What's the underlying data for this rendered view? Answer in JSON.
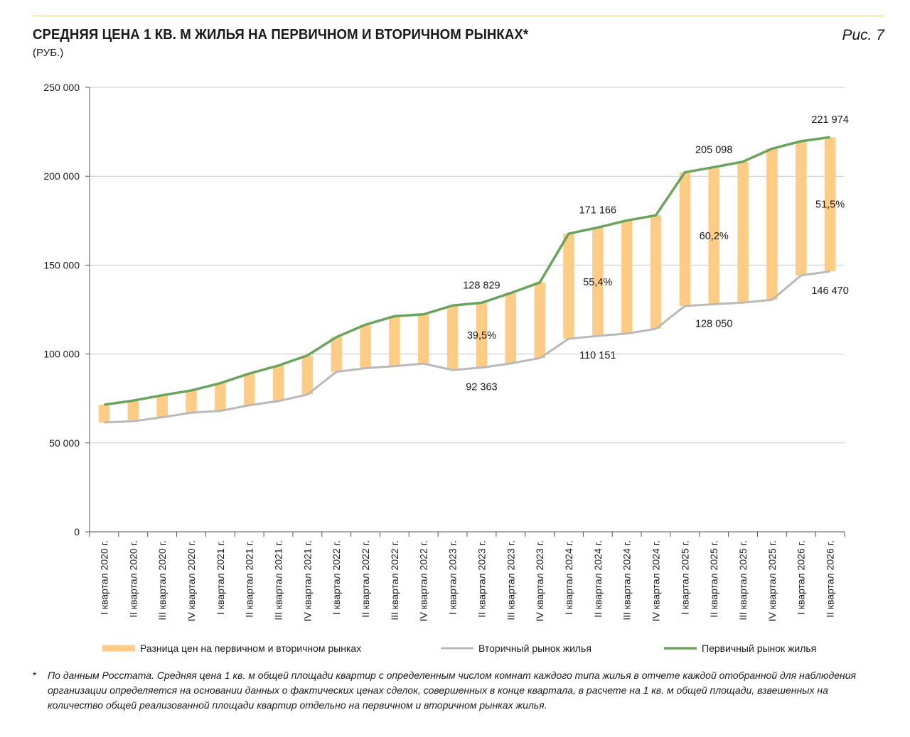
{
  "header": {
    "title": "СРЕДНЯЯ ЦЕНА 1 КВ. М ЖИЛЬЯ НА ПЕРВИЧНОМ И ВТОРИЧНОМ РЫНКАХ*",
    "subtitle": "(РУБ.)",
    "figure_label": "Рис. 7"
  },
  "colors": {
    "primary": "#6aa35c",
    "secondary": "#b9b9b9",
    "gap": "#ffcc85",
    "grid": "#c8c8c8"
  },
  "chart_data": {
    "type": "line",
    "ylim": [
      0,
      250000
    ],
    "yticks": [
      "0",
      "50 000",
      "100 000",
      "150 000",
      "200 000",
      "250 000"
    ],
    "ytick_values": [
      0,
      50000,
      100000,
      150000,
      200000,
      250000
    ],
    "grid": "horizontal",
    "legend_position": "bottom",
    "categories": [
      "I квартал 2020 г.",
      "II квартал 2020 г.",
      "III квартал 2020 г.",
      "IV квартал 2020 г.",
      "I квартал 2021 г.",
      "II квартал 2021 г.",
      "III квартал 2021 г.",
      "IV квартал 2021 г.",
      "I квартал 2022 г.",
      "II квартал 2022 г.",
      "III квартал 2022 г.",
      "IV квартал 2022 г.",
      "I квартал 2023 г.",
      "II квартал 2023 г.",
      "III квартал 2023 г.",
      "IV квартал 2023 г.",
      "I квартал 2024 г.",
      "II квартал 2024 г.",
      "III квартал 2024 г.",
      "IV квартал 2024 г.",
      "I квартал 2025 г.",
      "II квартал 2025 г.",
      "III квартал 2025 г.",
      "IV квартал 2025 г.",
      "I квартал 2026 г.",
      "II квартал 2026 г."
    ],
    "series": [
      {
        "name": "Первичный рынок жилья",
        "color": "#6aa35c",
        "values": [
          71500,
          73800,
          76800,
          79500,
          83600,
          89000,
          93500,
          99200,
          109500,
          116500,
          121300,
          122300,
          127300,
          128829,
          134300,
          140200,
          167700,
          171166,
          175100,
          178000,
          202200,
          205098,
          208200,
          215500,
          219700,
          221974
        ]
      },
      {
        "name": "Вторичный рынок жилья",
        "color": "#b9b9b9",
        "values": [
          61500,
          62200,
          64400,
          67000,
          68000,
          71200,
          73500,
          77200,
          90000,
          92000,
          93200,
          94600,
          91000,
          92363,
          94700,
          97700,
          108600,
          110151,
          111500,
          114200,
          127000,
          128050,
          128900,
          130500,
          144200,
          146470
        ]
      },
      {
        "name": "Разница цен на первичном и вторичном рынках",
        "color": "#ffcc85",
        "type": "bar-range"
      }
    ],
    "data_labels": [
      {
        "text": "128 829",
        "index": 13,
        "series": "primary",
        "pos": "above"
      },
      {
        "text": "171 166",
        "index": 17,
        "series": "primary",
        "pos": "above"
      },
      {
        "text": "205 098",
        "index": 21,
        "series": "primary",
        "pos": "above"
      },
      {
        "text": "221 974",
        "index": 25,
        "series": "primary",
        "pos": "above"
      },
      {
        "text": "92 363",
        "index": 13,
        "series": "secondary",
        "pos": "below"
      },
      {
        "text": "110 151",
        "index": 17,
        "series": "secondary",
        "pos": "below"
      },
      {
        "text": "128 050",
        "index": 21,
        "series": "secondary",
        "pos": "below"
      },
      {
        "text": "146 470",
        "index": 25,
        "series": "secondary",
        "pos": "below"
      },
      {
        "text": "39,5%",
        "index": 13,
        "series": "gap",
        "pos": "middle"
      },
      {
        "text": "55,4%",
        "index": 17,
        "series": "gap",
        "pos": "middle"
      },
      {
        "text": "60,2%",
        "index": 21,
        "series": "gap",
        "pos": "middle"
      },
      {
        "text": "51,5%",
        "index": 25,
        "series": "gap",
        "pos": "middle"
      }
    ],
    "legend": [
      "Разница цен на первичном и вторичном рынках",
      "Вторичный рынок жилья",
      "Первичный рынок жилья"
    ]
  },
  "footnote": {
    "star": "*",
    "text": "По данным Росстата. Средняя цена 1 кв. м общей площади квартир с определенным числом комнат каждого типа жилья в отчете каждой отобранной для наблюдения организации определяется на основании данных о фактических ценах сделок, совершенных в конце квартала, в расчете на 1 кв. м общей площади, взвешенных на количество общей реализованной площади квартир отдельно на первичном и вторичном рынках жилья."
  }
}
